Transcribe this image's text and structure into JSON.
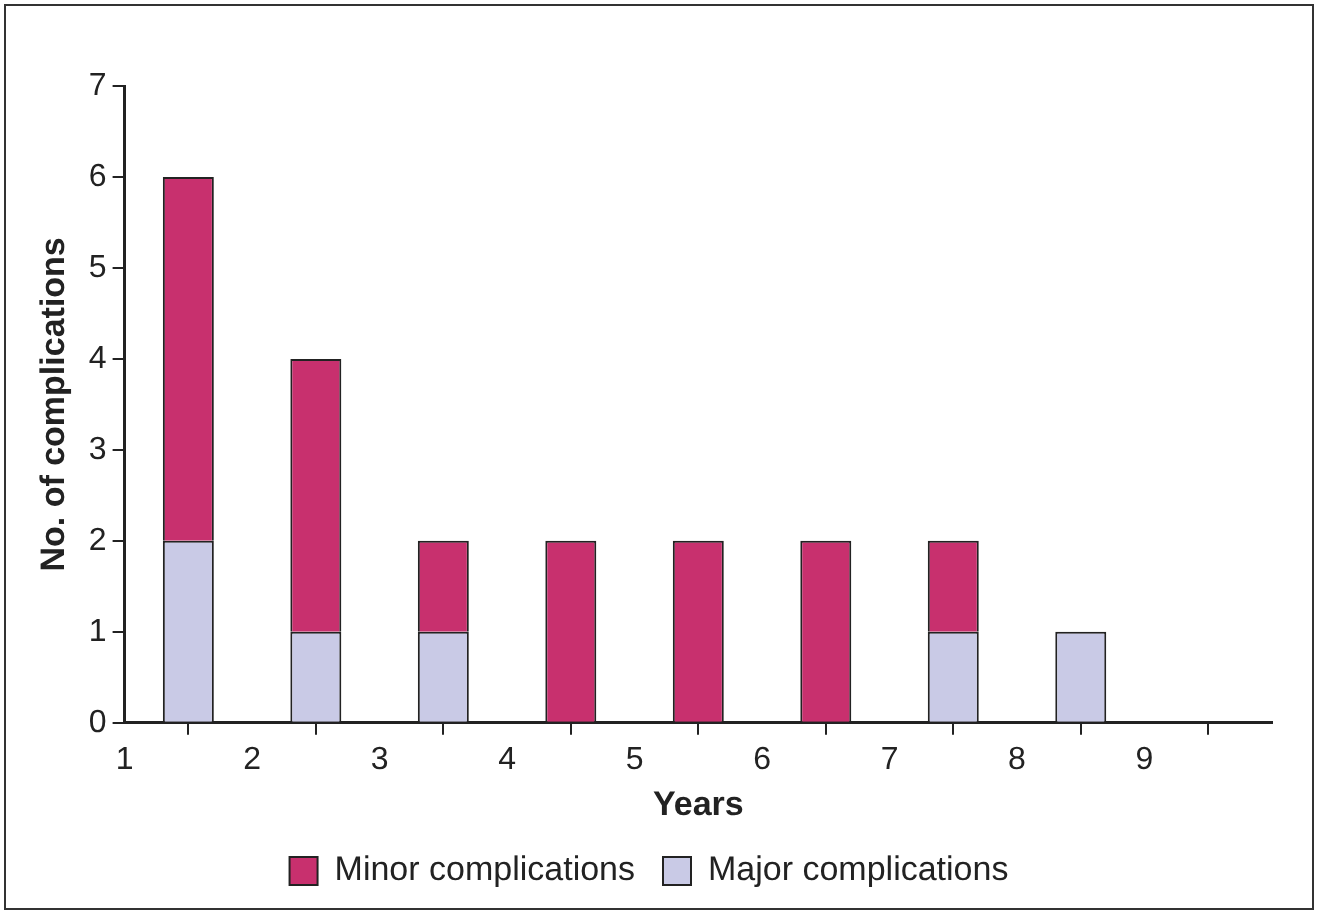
{
  "chart_data": {
    "type": "bar",
    "stacked": true,
    "xlabel": "Years",
    "ylabel": "No. of complications",
    "x": [
      1.5,
      2.5,
      3.5,
      4.5,
      5.5,
      6.5,
      7.5,
      8.5
    ],
    "series": [
      {
        "name": "Major complications",
        "color": "#c9cae6",
        "values": [
          2,
          1,
          1,
          0,
          0,
          0,
          1,
          1
        ]
      },
      {
        "name": "Minor complications",
        "color": "#c8306e",
        "values": [
          4,
          3,
          1,
          2,
          2,
          2,
          1,
          0
        ]
      }
    ],
    "xlim": [
      1,
      10
    ],
    "xticks": [
      1,
      2,
      3,
      4,
      5,
      6,
      7,
      8,
      9
    ],
    "ylim": [
      0,
      7
    ],
    "yticks": [
      0,
      1,
      2,
      3,
      4,
      5,
      6,
      7
    ],
    "grid": false,
    "legend": "bottom"
  }
}
